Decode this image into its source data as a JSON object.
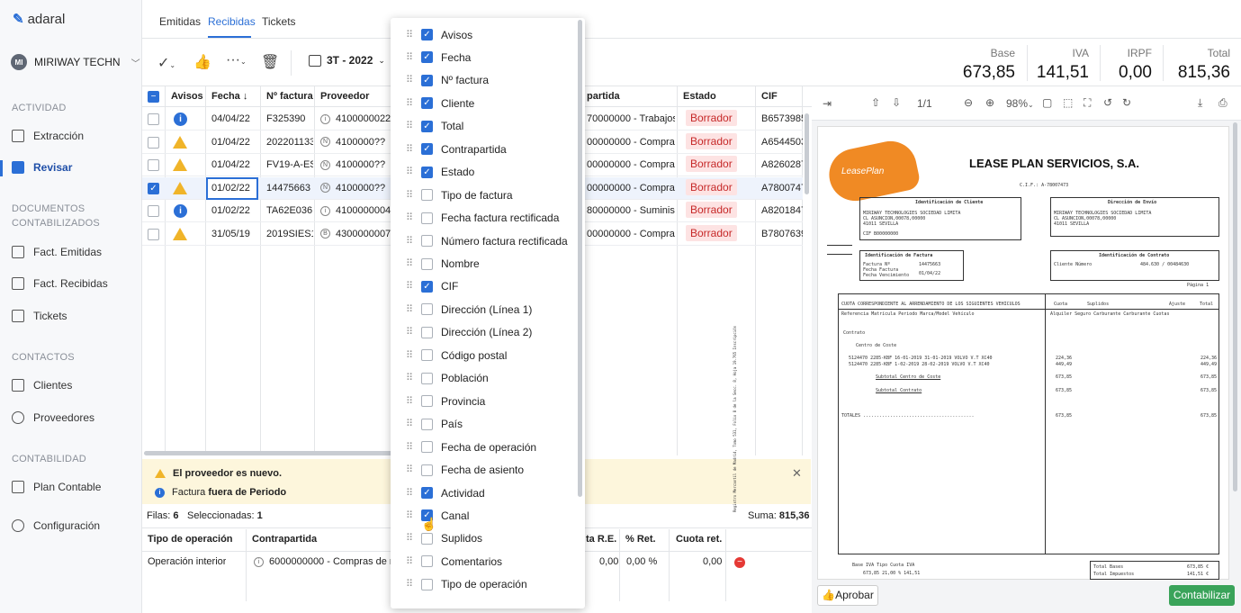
{
  "app": {
    "logo": "adaral"
  },
  "sidebar": {
    "company": {
      "initials": "MI",
      "name": "MIRIWAY TECHN"
    },
    "sections": {
      "actividad": "ACTIVIDAD",
      "documentos": "DOCUMENTOS CONTABILIZADOS",
      "contactos": "CONTACTOS",
      "contabilidad": "CONTABILIDAD"
    },
    "items": {
      "extraccion": "Extracción",
      "revisar": "Revisar",
      "fact_emitidas": "Fact. Emitidas",
      "fact_recibidas": "Fact. Recibidas",
      "tickets": "Tickets",
      "clientes": "Clientes",
      "proveedores": "Proveedores",
      "plan_contable": "Plan Contable",
      "configuracion": "Configuración"
    }
  },
  "tabs": {
    "emitidas": "Emitidas",
    "recibidas": "Recibidas",
    "tickets": "Tickets"
  },
  "toolbar": {
    "period": "3T - 2022"
  },
  "totals": {
    "base_label": "Base",
    "base": "673,85",
    "iva_label": "IVA",
    "iva": "141,51",
    "irpf_label": "IRPF",
    "irpf": "0,00",
    "total_label": "Total",
    "total": "815,36"
  },
  "table": {
    "headers": {
      "avisos": "Avisos",
      "fecha": "Fecha ↓",
      "nfactura": "Nº factura",
      "proveedor": "Proveedor",
      "contrapartida": "partida",
      "estado": "Estado",
      "cif": "CIF"
    },
    "rows": [
      {
        "fecha": "04/04/22",
        "nf": "F325390",
        "prov_icon": "i",
        "prov": "4100000022",
        "contra": "70000000 - Trabajos r",
        "estado": "Borrador",
        "cif": "B6573985"
      },
      {
        "fecha": "01/04/22",
        "nf": "202201133",
        "prov_icon": "N",
        "prov": "4100000??",
        "contra": "00000000 - Compras",
        "estado": "Borrador",
        "cif": "A6544503"
      },
      {
        "fecha": "01/04/22",
        "nf": "FV19-A-ES",
        "prov_icon": "N",
        "prov": "4100000??",
        "contra": "00000000 - Compras",
        "estado": "Borrador",
        "cif": "A8260287"
      },
      {
        "fecha": "01/02/22",
        "nf": "14475663",
        "prov_icon": "N",
        "prov": "4100000??",
        "contra": "00000000 - Compras",
        "estado": "Borrador",
        "cif": "A7800747"
      },
      {
        "fecha": "01/02/22",
        "nf": "TA62E036",
        "prov_icon": "i",
        "prov": "4100000004",
        "contra": "80000000 - Suministr",
        "estado": "Borrador",
        "cif": "A8201847"
      },
      {
        "fecha": "31/05/19",
        "nf": "2019SIES1",
        "prov_icon": "B",
        "prov": "4300000007",
        "contra": "00000000 - Compras",
        "estado": "Borrador",
        "cif": "B7807639"
      }
    ]
  },
  "alert": {
    "line1": "El proveedor es nuevo.",
    "line2_pre": "Factura ",
    "line2_bold": "fuera de Periodo"
  },
  "footer": {
    "filas_label": "Filas:",
    "filas": "6",
    "sel_label": "Seleccionadas:",
    "sel": "1",
    "suma_label": "Suma:",
    "suma": "815,36"
  },
  "detail": {
    "headers": {
      "tipo": "Tipo de operación",
      "contra": "Contrapartida",
      "re": "ta R.E.",
      "ret": "% Ret.",
      "cuota": "Cuota ret."
    },
    "row": {
      "tipo": "Operación interior",
      "contra": "6000000000 - Compras de n",
      "re": "0,00",
      "ret": "0,00 %",
      "cuota": "0,00"
    }
  },
  "dropdown": {
    "options": [
      {
        "label": "Avisos",
        "checked": true
      },
      {
        "label": "Fecha",
        "checked": true
      },
      {
        "label": "Nº factura",
        "checked": true
      },
      {
        "label": "Cliente",
        "checked": true
      },
      {
        "label": "Total",
        "checked": true
      },
      {
        "label": "Contrapartida",
        "checked": true
      },
      {
        "label": "Estado",
        "checked": true
      },
      {
        "label": "Tipo de factura",
        "checked": false
      },
      {
        "label": "Fecha factura rectificada",
        "checked": false
      },
      {
        "label": "Número factura rectificada",
        "checked": false
      },
      {
        "label": "Nombre",
        "checked": false
      },
      {
        "label": "CIF",
        "checked": true
      },
      {
        "label": "Dirección (Línea 1)",
        "checked": false
      },
      {
        "label": "Dirección (Línea 2)",
        "checked": false
      },
      {
        "label": "Código postal",
        "checked": false
      },
      {
        "label": "Población",
        "checked": false
      },
      {
        "label": "Provincia",
        "checked": false
      },
      {
        "label": "País",
        "checked": false
      },
      {
        "label": "Fecha de operación",
        "checked": false
      },
      {
        "label": "Fecha de asiento",
        "checked": false
      },
      {
        "label": "Actividad",
        "checked": true
      },
      {
        "label": "Canal",
        "checked": true
      },
      {
        "label": "Suplidos",
        "checked": false
      },
      {
        "label": "Comentarios",
        "checked": false
      },
      {
        "label": "Tipo de operación",
        "checked": false
      }
    ]
  },
  "viewer": {
    "page": "1/1",
    "zoom": "98%",
    "doc": {
      "logo": "LeasePlan",
      "company": "LEASE PLAN SERVICIOS, S.A.",
      "cif": "C.I.F.: A-78007473",
      "id_cliente": "Identificación de Cliente",
      "dir_envio": "Dirección de Envío",
      "client_name": "MIRIWAY TECHNOLOGIES SOCIEDAD LIMITA",
      "client_addr": "CL ASUNCION,00078,00000",
      "client_city": "41011 SEVILLA",
      "cif_line": "CIF B00000000",
      "id_factura": "Identificación de Factura",
      "factura_no": "Factura Nº",
      "factura_val": "14475663",
      "fecha_fact": "Fecha Factura",
      "fecha_venc": "Fecha Vencimiento",
      "fecha_val": "01/04/22",
      "id_contrato": "Identificación de Contrato",
      "cliente_numero": "Cliente Número",
      "contrato_val": "484.630    / 00484630",
      "pagina": "Página  1",
      "cuota_title": "CUOTA CORRESPONDIENTE AL ARRENDAMIENTO DE LOS SIGUIENTES VEHICULOS",
      "col_heads": "Referencia  Matrícula          Periodo              Marca/Model Vehículo",
      "cuota": "Cuota",
      "suplidos": "Suplidos",
      "ajuste": "Ajuste",
      "total": "Total",
      "col2": "Alquiler  Seguro  Carburante  Carburante   Cuotas",
      "contrato": "Contrato",
      "centro": "Centro de Coste",
      "l1": "5124470  2285-KBF   16-01-2019  31-01-2019   VOLVO V.T XC40",
      "l2": "5124470  2285-KBF    1-02-2019  28-02-2019   VOLVO V.T XC40",
      "subtotal_cc": "Subtotal Centro de Coste",
      "subtotal_c": "Subtotal Contrato",
      "totales": "TOTALES .........................................",
      "a1": "224,36",
      "a2": "449,49",
      "a3": "673,85",
      "base_iva": "Base IVA     Tipo           Cuota IVA",
      "iva_line": "673,85  21,00 %          141,51",
      "total_bases": "Total Bases",
      "total_imp": "Total Impuestos",
      "tb_val": "673,85 €",
      "ti_val": "141,51 €",
      "side": "Registro Mercantil de Madrid, Tomo 531, Folio 8 de la Secc. 8, Hoja 19.765 Inscripción"
    }
  },
  "buttons": {
    "aprobar": "Aprobar",
    "contabilizar": "Contabilizar"
  }
}
